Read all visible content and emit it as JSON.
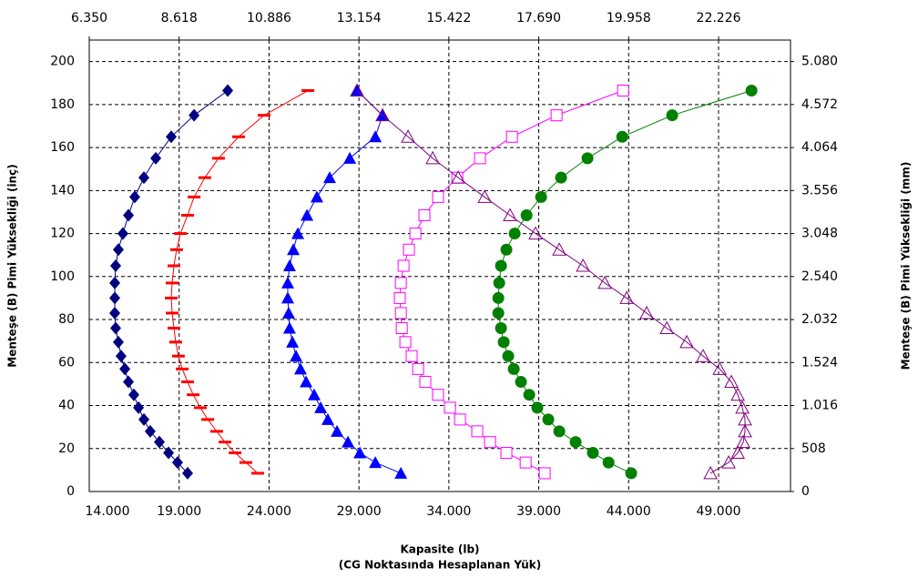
{
  "chart_data": {
    "type": "line",
    "xlabel": [
      "Kapasite (lb)",
      "(CG Noktasında Hesaplanan Yük)"
    ],
    "ylabel": "Menteşe (B) Pimi Yüksekliği (inç)",
    "y2label": "Menteşe (B) Pimi Yüksekliği (mm)",
    "xlim": [
      14000,
      53000
    ],
    "xticks": [
      {
        "value": 14000,
        "label": "14.000"
      },
      {
        "value": 19000,
        "label": "19.000"
      },
      {
        "value": 24000,
        "label": "24.000"
      },
      {
        "value": 29000,
        "label": "29.000"
      },
      {
        "value": 34000,
        "label": "34.000"
      },
      {
        "value": 39000,
        "label": "39.000"
      },
      {
        "value": 44000,
        "label": "44.000"
      },
      {
        "value": 49000,
        "label": "49.000"
      }
    ],
    "x2lim": [
      6.35,
      24.04
    ],
    "x2ticks": [
      {
        "value": 6.35,
        "label": "6.350"
      },
      8.618,
      10.886,
      13.154,
      15.422,
      {
        "value": 17.69,
        "label": "17.690"
      },
      19.958,
      22.226
    ],
    "ylim": [
      0,
      210
    ],
    "yticks": [
      0,
      20,
      40,
      60,
      80,
      100,
      120,
      140,
      160,
      180,
      200
    ],
    "y2lim": [
      0,
      5334
    ],
    "y2ticks": [
      0,
      508,
      {
        "value": 1016,
        "label": "1.016"
      },
      {
        "value": 1524,
        "label": "1.524"
      },
      {
        "value": 2032,
        "label": "2.032"
      },
      {
        "value": 2540,
        "label": "2.540"
      },
      {
        "value": 3048,
        "label": "3.048"
      },
      {
        "value": 3556,
        "label": "3.556"
      },
      {
        "value": 4064,
        "label": "4.064"
      },
      {
        "value": 4572,
        "label": "4.572"
      },
      {
        "value": 5080,
        "label": "5.080"
      }
    ],
    "grid": true,
    "series": [
      {
        "color": "#000080",
        "marker": "diamond",
        "x": [
          21700,
          19830,
          18560,
          17700,
          17040,
          16530,
          16180,
          15870,
          15620,
          15470,
          15420,
          15420,
          15420,
          15470,
          15620,
          15770,
          15980,
          16180,
          16480,
          16740,
          17040,
          17390,
          17900,
          18410,
          18910,
          19470
        ],
        "y": [
          186.5,
          175,
          165,
          155,
          146,
          137,
          128.5,
          120,
          112.5,
          105,
          97,
          90,
          83,
          76,
          69.5,
          63,
          57,
          51,
          45,
          39,
          33.5,
          28,
          23,
          18,
          13.5,
          8.5
        ]
      },
      {
        "color": "#ff0000",
        "marker": "dash",
        "x": [
          26160,
          23730,
          22310,
          21190,
          20430,
          19830,
          19470,
          19070,
          18860,
          18710,
          18610,
          18560,
          18610,
          18710,
          18810,
          18960,
          19170,
          19470,
          19780,
          20180,
          20590,
          21090,
          21550,
          22110,
          22710,
          23370
        ],
        "y": [
          186.5,
          175,
          165,
          155,
          146,
          137,
          128.5,
          120,
          112.5,
          105,
          97,
          90,
          83,
          76,
          69.5,
          63,
          57,
          51,
          45,
          39,
          33.5,
          28,
          23,
          18,
          13.5,
          8.5
        ]
      },
      {
        "color": "#0000ff",
        "marker": "triangle",
        "x": [
          28890,
          30310,
          29910,
          28490,
          27370,
          26660,
          26110,
          25600,
          25350,
          25140,
          25040,
          25040,
          25090,
          25140,
          25300,
          25500,
          25750,
          26060,
          26510,
          26870,
          27270,
          27780,
          28390,
          29050,
          29910,
          31330
        ],
        "y": [
          186.5,
          175,
          165,
          155,
          146,
          137,
          128.5,
          120,
          112.5,
          105,
          97,
          90,
          83,
          76,
          69.5,
          63,
          57,
          51,
          45,
          39,
          33.5,
          28,
          23,
          18,
          13.5,
          8.5
        ]
      },
      {
        "color": "#ff00ff",
        "marker": "square-open",
        "x": [
          43690,
          39990,
          37510,
          35730,
          34470,
          33400,
          32640,
          32140,
          31780,
          31480,
          31330,
          31270,
          31330,
          31380,
          31580,
          31930,
          32290,
          32690,
          33400,
          34060,
          34620,
          35580,
          36290,
          37200,
          38270,
          39330
        ],
        "y": [
          186.5,
          175,
          165,
          155,
          146,
          137,
          128.5,
          120,
          112.5,
          105,
          97,
          90,
          83,
          76,
          69.5,
          63,
          57,
          51,
          45,
          39,
          33.5,
          28,
          23,
          18,
          13.5,
          8.5
        ]
      },
      {
        "color": "#008000",
        "marker": "circle",
        "x": [
          50830,
          46420,
          43640,
          41710,
          40240,
          39130,
          38320,
          37660,
          37200,
          36900,
          36800,
          36750,
          36750,
          36900,
          37050,
          37300,
          37610,
          38010,
          38470,
          38920,
          39530,
          40140,
          41050,
          42010,
          42880,
          44140
        ],
        "y": [
          186.5,
          175,
          165,
          155,
          146,
          137,
          128.5,
          120,
          112.5,
          105,
          97,
          90,
          83,
          76,
          69.5,
          63,
          57,
          51,
          45,
          39,
          33.5,
          28,
          23,
          18,
          13.5,
          8.5
        ]
      },
      {
        "color": "#800080",
        "marker": "triangle-open",
        "x": [
          28890,
          30310,
          31730,
          33100,
          34520,
          35990,
          37400,
          38820,
          40140,
          41460,
          42670,
          43890,
          45000,
          46120,
          47230,
          48140,
          49060,
          49710,
          50070,
          50320,
          50470,
          50470,
          50370,
          50070,
          49560,
          48550
        ],
        "y": [
          186.5,
          175,
          165,
          155,
          146,
          137,
          128.5,
          120,
          112.5,
          105,
          97,
          90,
          83,
          76,
          69.5,
          63,
          57,
          51,
          45,
          39,
          33.5,
          28,
          23,
          18,
          13.5,
          8.5
        ]
      }
    ]
  }
}
